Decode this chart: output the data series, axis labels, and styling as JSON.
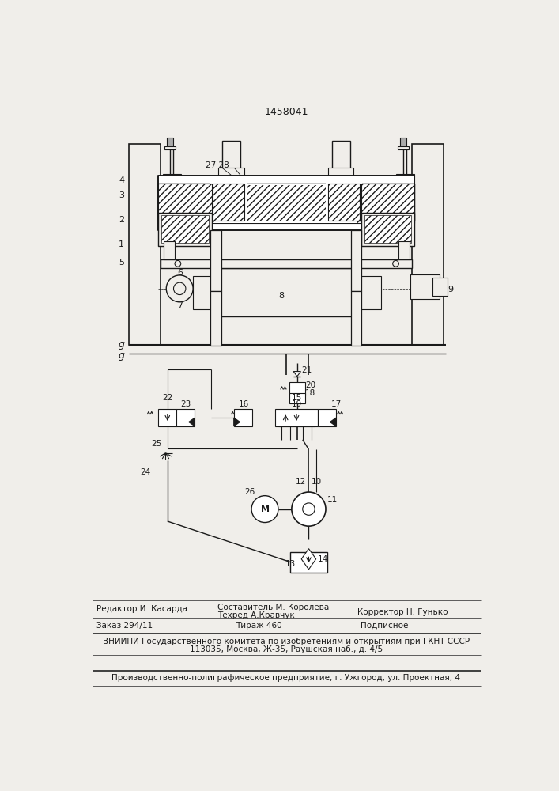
{
  "patent_number": "1458041",
  "bg_color": "#f0eeea",
  "line_color": "#1a1a1a",
  "footer": {
    "editor": "Редактор И. Касарда",
    "compiler": "Составитель М. Королева",
    "tech": "Техред А.Кравчук",
    "corrector": "Корректор Н. Гунько",
    "order": "Заказ 294/11",
    "tirage": "Тираж 460",
    "podpisnoe": "Подписное",
    "vniipи": "ВНИИПИ Государственного комитета по изобретениям и открытиям при ГКНТ СССР",
    "address": "113035, Москва, Ж-35, Раушская наб., д. 4/5",
    "plant": "Производственно-полиграфическое предприятие, г. Ужгород, ул. Проектная, 4"
  }
}
